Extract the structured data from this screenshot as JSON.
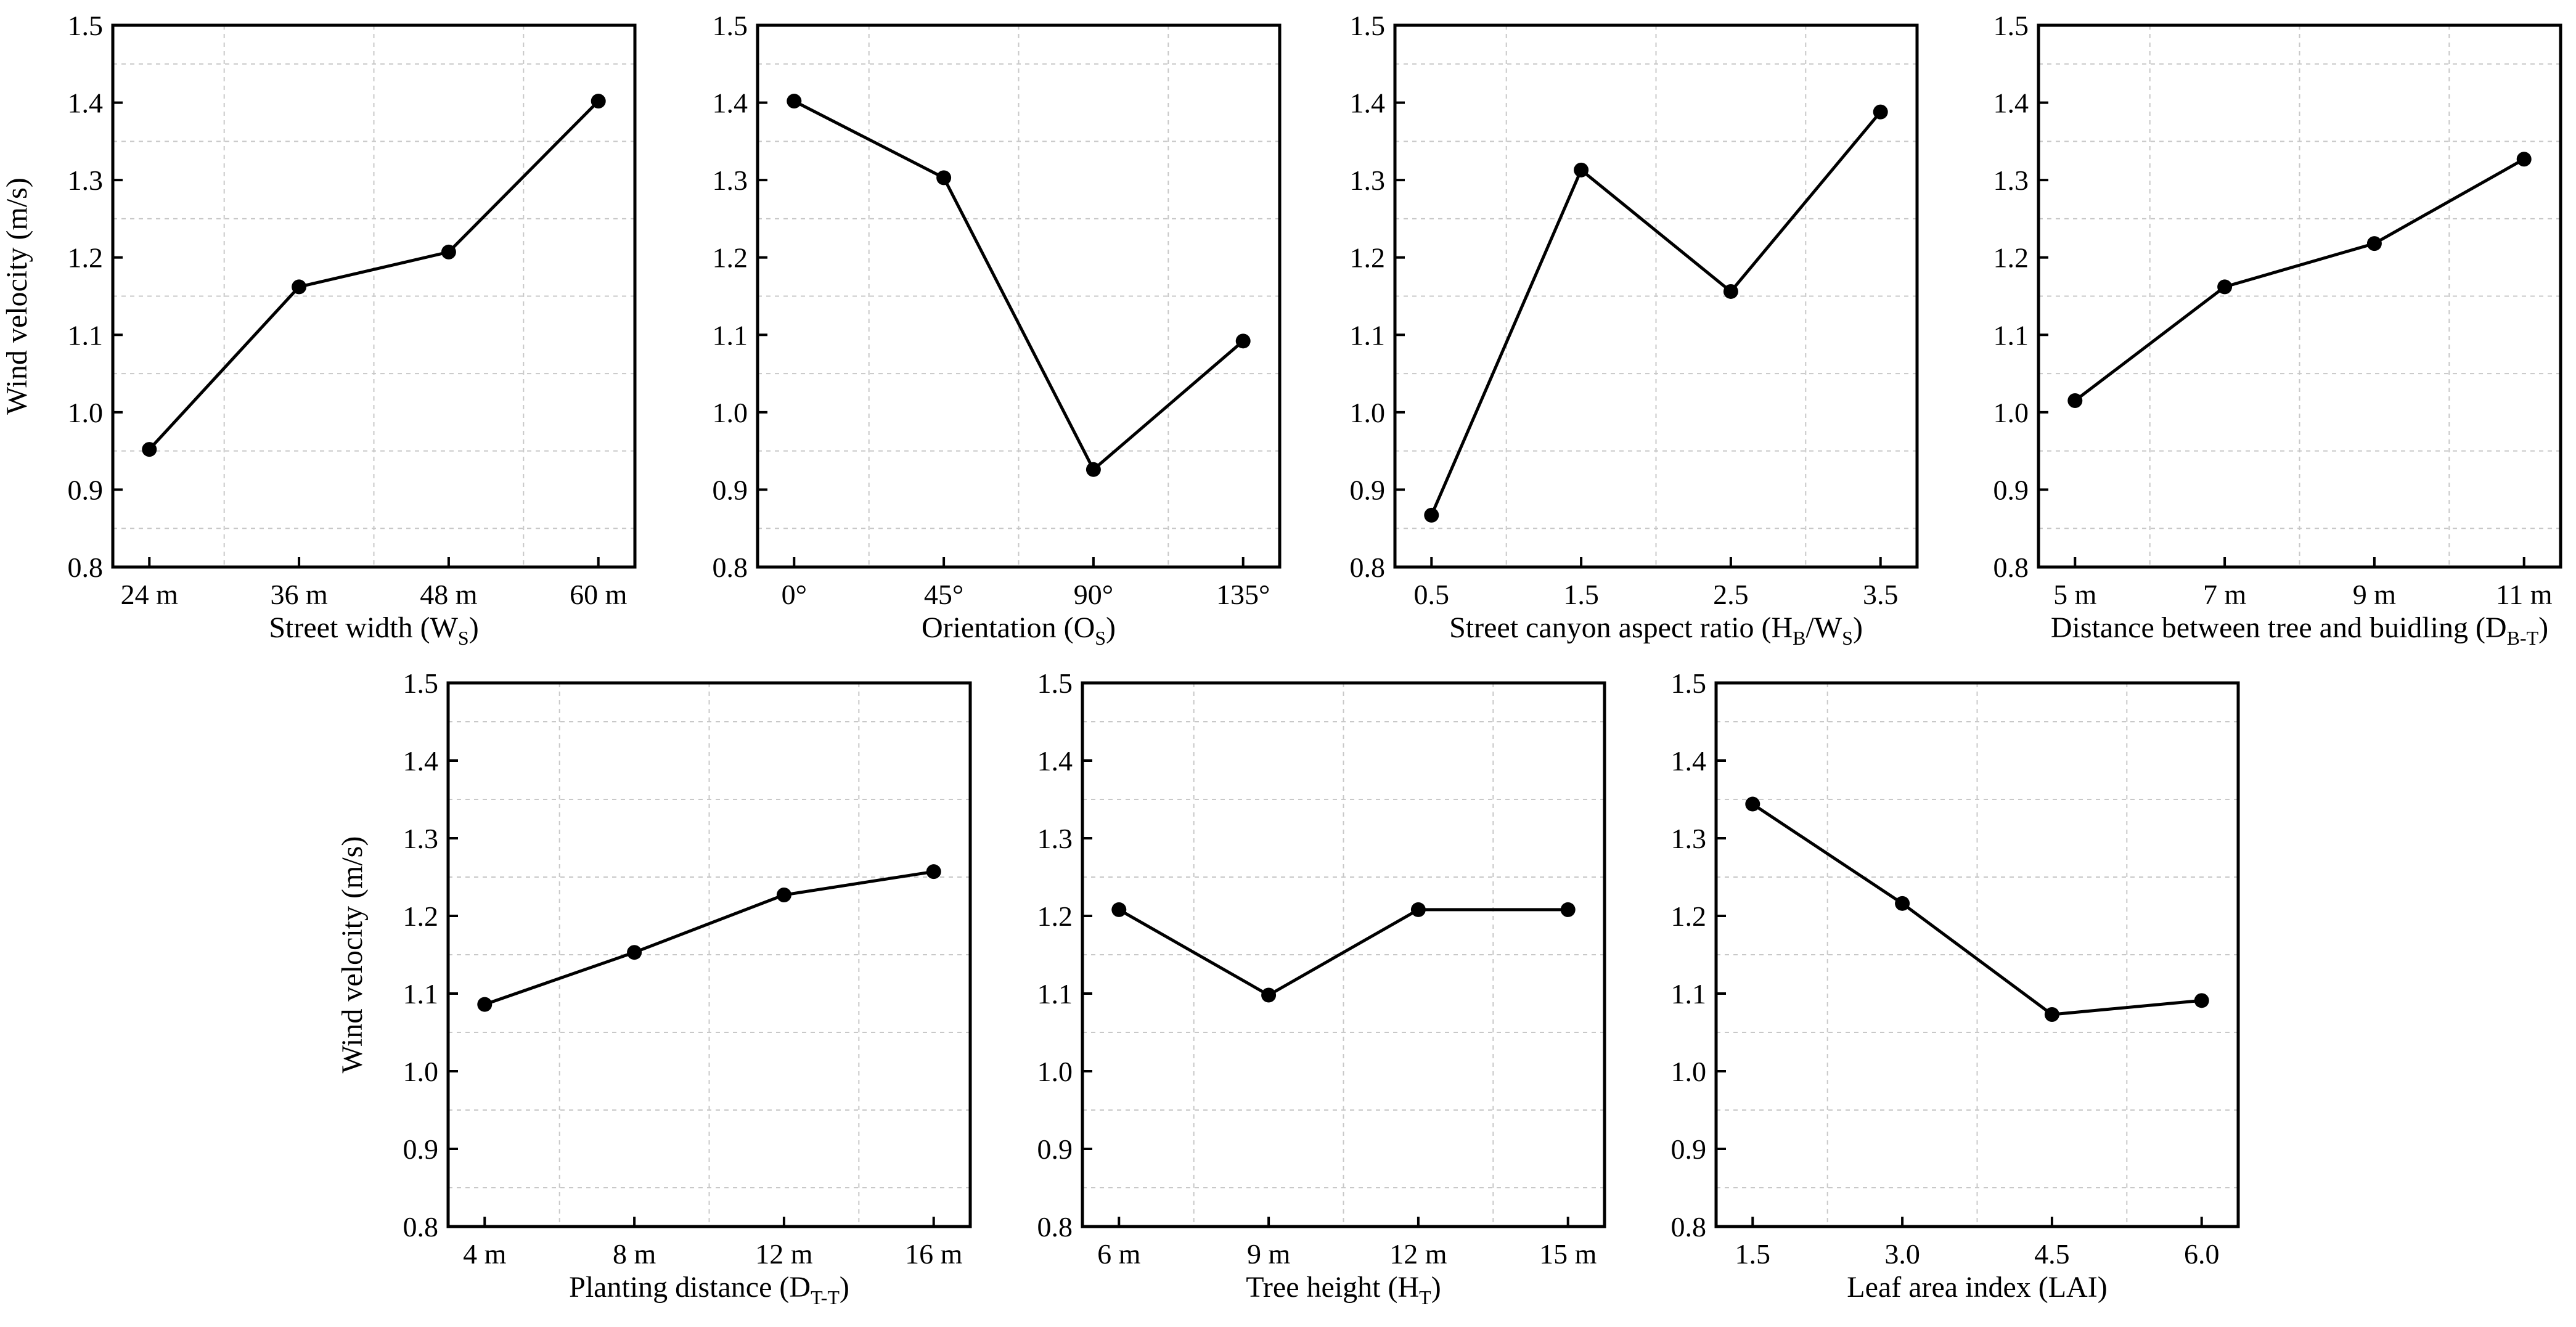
{
  "chart_data": [
    {
      "type": "line",
      "ylabel": "Wind velocity (m/s)",
      "xlabel": {
        "main": "Street width (W",
        "sub": "S",
        "tail": ")"
      },
      "ylim": [
        0.8,
        1.5
      ],
      "yticks": [
        "0.8",
        "0.9",
        "1.0",
        "1.1",
        "1.2",
        "1.3",
        "1.4",
        "1.5"
      ],
      "categories": [
        "24 m",
        "36 m",
        "48 m",
        "60 m"
      ],
      "values": [
        0.952,
        1.162,
        1.207,
        1.402
      ]
    },
    {
      "type": "line",
      "ylabel": "",
      "xlabel": {
        "main": "Orientation (O",
        "sub": "S",
        "tail": ")"
      },
      "ylim": [
        0.8,
        1.5
      ],
      "yticks": [
        "0.8",
        "0.9",
        "1.0",
        "1.1",
        "1.2",
        "1.3",
        "1.4",
        "1.5"
      ],
      "categories": [
        "0°",
        "45°",
        "90°",
        "135°"
      ],
      "values": [
        1.402,
        1.303,
        0.926,
        1.092
      ]
    },
    {
      "type": "line",
      "ylabel": "",
      "xlabel": {
        "main": "Street canyon aspect ratio (H",
        "sub": "B",
        "mid": "/W",
        "sub2": "S",
        "tail": ")"
      },
      "ylim": [
        0.8,
        1.5
      ],
      "yticks": [
        "0.8",
        "0.9",
        "1.0",
        "1.1",
        "1.2",
        "1.3",
        "1.4",
        "1.5"
      ],
      "categories": [
        "0.5",
        "1.5",
        "2.5",
        "3.5"
      ],
      "values": [
        0.867,
        1.313,
        1.156,
        1.388
      ]
    },
    {
      "type": "line",
      "ylabel": "",
      "xlabel": {
        "main": "Distance between tree and buidling (D",
        "sub": "B-T",
        "tail": ")"
      },
      "ylim": [
        0.8,
        1.5
      ],
      "yticks": [
        "0.8",
        "0.9",
        "1.0",
        "1.1",
        "1.2",
        "1.3",
        "1.4",
        "1.5"
      ],
      "categories": [
        "5 m",
        "7 m",
        "9 m",
        "11 m"
      ],
      "values": [
        1.015,
        1.162,
        1.218,
        1.327
      ]
    },
    {
      "type": "line",
      "ylabel": "Wind velocity (m/s)",
      "xlabel": {
        "main": "Planting distance (D",
        "sub": "T-T",
        "tail": ")"
      },
      "ylim": [
        0.8,
        1.5
      ],
      "yticks": [
        "0.8",
        "0.9",
        "1.0",
        "1.1",
        "1.2",
        "1.3",
        "1.4",
        "1.5"
      ],
      "categories": [
        "4 m",
        "8 m",
        "12 m",
        "16 m"
      ],
      "values": [
        1.086,
        1.153,
        1.227,
        1.257
      ]
    },
    {
      "type": "line",
      "ylabel": "",
      "xlabel": {
        "main": "Tree height (H",
        "sub": "T",
        "tail": ")"
      },
      "ylim": [
        0.8,
        1.5
      ],
      "yticks": [
        "0.8",
        "0.9",
        "1.0",
        "1.1",
        "1.2",
        "1.3",
        "1.4",
        "1.5"
      ],
      "categories": [
        "6 m",
        "9 m",
        "12 m",
        "15 m"
      ],
      "values": [
        1.208,
        1.098,
        1.208,
        1.208
      ]
    },
    {
      "type": "line",
      "ylabel": "",
      "xlabel": {
        "main": "Leaf area index (LAI)"
      },
      "ylim": [
        0.8,
        1.5
      ],
      "yticks": [
        "0.8",
        "0.9",
        "1.0",
        "1.1",
        "1.2",
        "1.3",
        "1.4",
        "1.5"
      ],
      "categories": [
        "1.5",
        "3.0",
        "4.5",
        "6.0"
      ],
      "values": [
        1.344,
        1.216,
        1.073,
        1.091
      ]
    }
  ]
}
